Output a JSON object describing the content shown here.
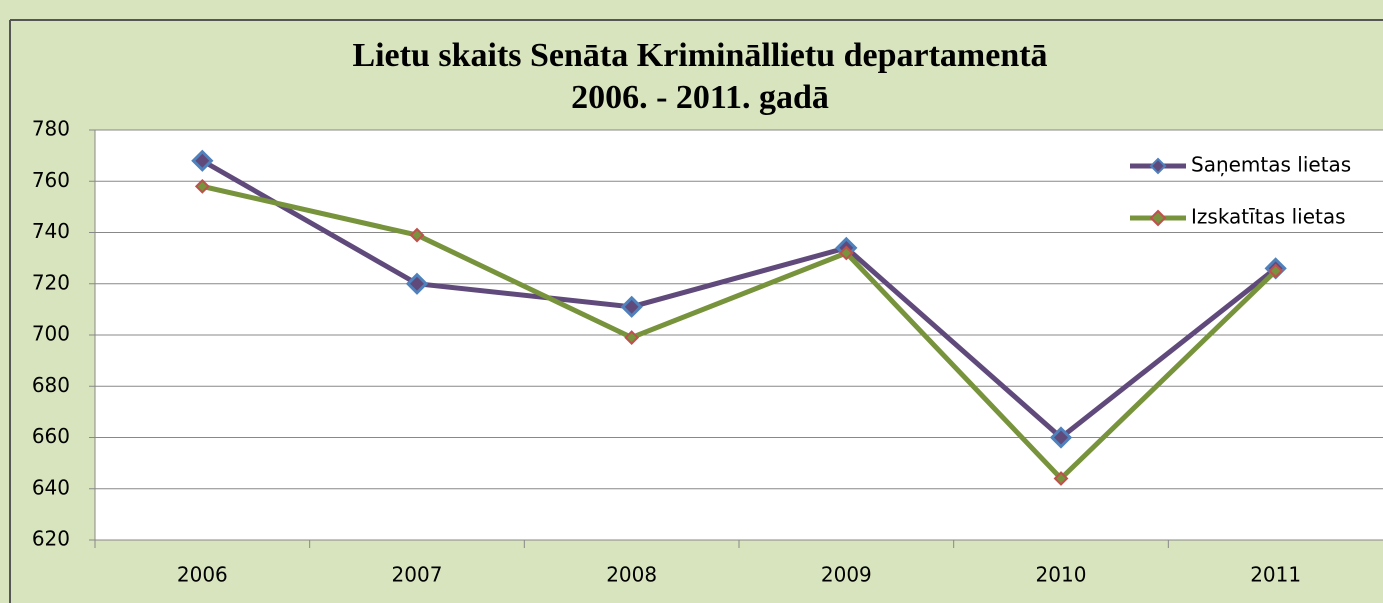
{
  "chart_data": {
    "type": "line",
    "title": [
      "Lietu skaits Senāta Krimināllietu departamentā",
      "2006. - 2011. gadā"
    ],
    "categories": [
      "2006",
      "2007",
      "2008",
      "2009",
      "2010",
      "2011"
    ],
    "series": [
      {
        "name": "Saņemtas lietas",
        "color": "#604a7b",
        "marker_color": "#4f81bd",
        "values": [
          768,
          720,
          711,
          734,
          660,
          726
        ]
      },
      {
        "name": "Izskatītas lietas",
        "color": "#77933c",
        "marker_color": "#c0504d",
        "values": [
          758,
          739,
          699,
          732,
          644,
          725
        ]
      }
    ],
    "ylim": [
      620,
      780
    ],
    "yticks": [
      620,
      640,
      660,
      680,
      700,
      720,
      740,
      760,
      780
    ],
    "grid": true,
    "legend": "upper right"
  }
}
